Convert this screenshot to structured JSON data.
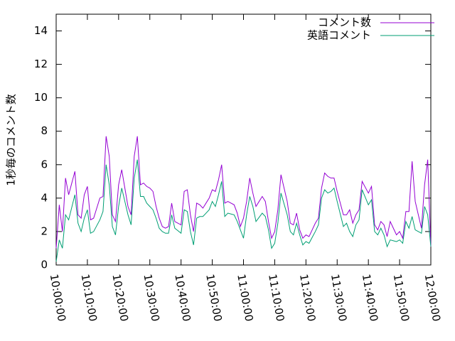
{
  "chart_data": {
    "type": "line",
    "ylabel": "1秒毎のコメント数",
    "x": [
      "10:00:00",
      "10:01:00",
      "10:02:00",
      "10:03:00",
      "10:04:00",
      "10:05:00",
      "10:06:00",
      "10:07:00",
      "10:08:00",
      "10:09:00",
      "10:10:00",
      "10:11:00",
      "10:12:00",
      "10:13:00",
      "10:14:00",
      "10:15:00",
      "10:16:00",
      "10:17:00",
      "10:18:00",
      "10:19:00",
      "10:20:00",
      "10:21:00",
      "10:22:00",
      "10:23:00",
      "10:24:00",
      "10:25:00",
      "10:26:00",
      "10:27:00",
      "10:28:00",
      "10:29:00",
      "10:30:00",
      "10:31:00",
      "10:32:00",
      "10:33:00",
      "10:34:00",
      "10:35:00",
      "10:36:00",
      "10:37:00",
      "10:38:00",
      "10:39:00",
      "10:40:00",
      "10:41:00",
      "10:42:00",
      "10:43:00",
      "10:44:00",
      "10:45:00",
      "10:46:00",
      "10:47:00",
      "10:48:00",
      "10:49:00",
      "10:50:00",
      "10:51:00",
      "10:52:00",
      "10:53:00",
      "10:54:00",
      "10:55:00",
      "10:56:00",
      "10:57:00",
      "10:58:00",
      "10:59:00",
      "11:00:00",
      "11:01:00",
      "11:02:00",
      "11:03:00",
      "11:04:00",
      "11:05:00",
      "11:06:00",
      "11:07:00",
      "11:08:00",
      "11:09:00",
      "11:10:00",
      "11:11:00",
      "11:12:00",
      "11:13:00",
      "11:14:00",
      "11:15:00",
      "11:16:00",
      "11:17:00",
      "11:18:00",
      "11:19:00",
      "11:20:00",
      "11:21:00",
      "11:22:00",
      "11:23:00",
      "11:24:00",
      "11:25:00",
      "11:26:00",
      "11:27:00",
      "11:28:00",
      "11:29:00",
      "11:30:00",
      "11:31:00",
      "11:32:00",
      "11:33:00",
      "11:34:00",
      "11:35:00",
      "11:36:00",
      "11:37:00",
      "11:38:00",
      "11:39:00",
      "11:40:00",
      "11:41:00",
      "11:42:00",
      "11:43:00",
      "11:44:00",
      "11:45:00",
      "11:46:00",
      "11:47:00",
      "11:48:00",
      "11:49:00",
      "11:50:00",
      "11:51:00",
      "11:52:00",
      "11:53:00",
      "11:54:00",
      "11:55:00",
      "11:56:00",
      "11:57:00",
      "11:58:00",
      "11:59:00",
      "12:00:00"
    ],
    "series": [
      {
        "name": "コメント数",
        "color": "#9400d3",
        "values": [
          1,
          3.6,
          2,
          5.2,
          4.2,
          4.9,
          5.6,
          3,
          2.8,
          4.2,
          4.7,
          2.7,
          2.8,
          3.4,
          4,
          4.1,
          7.7,
          6.5,
          3,
          2.6,
          4.8,
          5.7,
          4.6,
          3.5,
          3,
          6.5,
          7.7,
          4.8,
          4.9,
          4.7,
          4.6,
          4.4,
          3.5,
          2.8,
          2.3,
          2.2,
          2.3,
          3.7,
          2.6,
          2.5,
          2.4,
          4.4,
          4.5,
          3,
          2,
          3.7,
          3.6,
          3.4,
          3.7,
          4,
          4.5,
          4.4,
          5.1,
          6,
          3.7,
          3.8,
          3.7,
          3.6,
          3.1,
          2.3,
          2.8,
          3.8,
          5.2,
          4.3,
          3.5,
          3.8,
          4.1,
          3.8,
          2.6,
          1.6,
          2,
          3.3,
          5.4,
          4.6,
          3.8,
          2.5,
          2.4,
          3.1,
          2.1,
          1.6,
          1.8,
          1.7,
          2.1,
          2.5,
          2.8,
          4.6,
          5.5,
          5.3,
          5.2,
          5.2,
          4.4,
          3.7,
          3,
          3,
          3.3,
          2.5,
          3,
          3.3,
          5,
          4.65,
          4.3,
          4.7,
          2.4,
          2.1,
          2.6,
          2.4,
          1.7,
          2.6,
          2.2,
          1.8,
          2,
          1.6,
          3.2,
          3.2,
          6.2,
          3.8,
          3,
          2.2,
          4.8,
          6.3,
          1.1
        ]
      },
      {
        "name": "英語コメント",
        "color": "#009e73",
        "values": [
          0.2,
          1.5,
          1,
          3,
          2.7,
          3.45,
          4.2,
          2.5,
          2,
          2.8,
          3.3,
          1.9,
          2,
          2.35,
          2.7,
          3.2,
          6,
          4.8,
          2.3,
          1.8,
          3.5,
          4.6,
          3.8,
          3,
          2.4,
          5.2,
          6.3,
          4.1,
          4.1,
          3.7,
          3.5,
          3.3,
          2.8,
          2.2,
          2,
          1.9,
          1.9,
          3,
          2.2,
          2.05,
          1.9,
          3.3,
          3.2,
          2,
          1.2,
          2.8,
          2.9,
          2.9,
          3.1,
          3.3,
          3.8,
          3.5,
          4.2,
          5,
          2.9,
          3.1,
          3.05,
          3,
          2.6,
          2.1,
          1.6,
          3,
          4.1,
          3.5,
          2.6,
          2.85,
          3.1,
          2.9,
          2.1,
          1,
          1.3,
          2.5,
          4.3,
          3.65,
          3,
          2,
          1.8,
          2.5,
          1.8,
          1.2,
          1.4,
          1.3,
          1.65,
          2,
          2.4,
          4,
          4.5,
          4.3,
          4.4,
          4.6,
          3.8,
          3.05,
          2.3,
          2.5,
          2,
          1.7,
          2.4,
          2.7,
          4.5,
          4.05,
          3.6,
          3.9,
          2,
          1.8,
          2.2,
          1.8,
          1.1,
          1.5,
          1.45,
          1.4,
          1.5,
          1.3,
          2.6,
          2.2,
          2.9,
          2.1,
          2,
          1.9,
          3.5,
          3,
          1.1
        ]
      }
    ],
    "xlim": [
      "10:00:00",
      "12:00:00"
    ],
    "xticks": [
      "10:00:00",
      "10:10:00",
      "10:20:00",
      "10:30:00",
      "10:40:00",
      "10:50:00",
      "11:00:00",
      "11:10:00",
      "11:20:00",
      "11:30:00",
      "11:40:00",
      "11:50:00",
      "12:00:00"
    ],
    "ylim": [
      0,
      15
    ],
    "yticks": [
      0,
      2,
      4,
      6,
      8,
      10,
      12,
      14
    ],
    "legend": "upper right",
    "grid": false
  }
}
